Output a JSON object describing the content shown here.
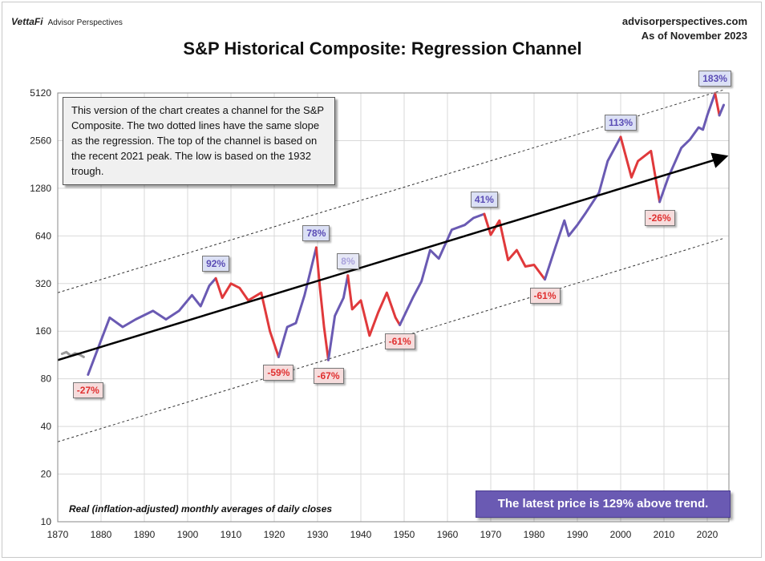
{
  "header": {
    "brand": "VettaFi",
    "brand_sub": "Advisor Perspectives",
    "site": "advisorperspectives.com",
    "as_of": "As of November 2023"
  },
  "colors": {
    "up": "#6a5ab3",
    "down": "#e0393b",
    "early": "#999999",
    "trend": "#000000"
  },
  "chart_data": {
    "type": "line",
    "title": "S&P Historical Composite: Regression Channel",
    "xlabel": "",
    "ylabel": "",
    "y_scale": "log2",
    "xlim": [
      1870,
      2025
    ],
    "ylim": [
      10,
      5120
    ],
    "x_ticks": [
      1870,
      1880,
      1890,
      1900,
      1910,
      1920,
      1930,
      1940,
      1950,
      1960,
      1970,
      1980,
      1990,
      2000,
      2010,
      2020
    ],
    "y_ticks": [
      10,
      20,
      40,
      80,
      160,
      320,
      640,
      1280,
      2560,
      5120
    ],
    "grid": true,
    "series": [
      {
        "color": "early",
        "x": [
          1871,
          1872,
          1873,
          1874,
          1875,
          1876
        ],
        "y": [
          115,
          118,
          112,
          116,
          114,
          110
        ]
      },
      {
        "color": "up",
        "x": [
          1877,
          1880,
          1882,
          1885,
          1888,
          1892,
          1895,
          1898,
          1901,
          1903,
          1905,
          1906.5
        ],
        "y": [
          85,
          140,
          195,
          170,
          190,
          215,
          190,
          215,
          270,
          230,
          310,
          345
        ]
      },
      {
        "color": "down",
        "x": [
          1906.5,
          1908,
          1910,
          1912,
          1914,
          1917,
          1919,
          1921
        ],
        "y": [
          345,
          260,
          320,
          300,
          250,
          280,
          160,
          110
        ]
      },
      {
        "color": "up",
        "x": [
          1921,
          1923,
          1925,
          1927,
          1929.7
        ],
        "y": [
          110,
          170,
          180,
          270,
          540
        ]
      },
      {
        "color": "down",
        "x": [
          1929.7,
          1930.5,
          1931.5,
          1932.5
        ],
        "y": [
          540,
          310,
          170,
          105
        ]
      },
      {
        "color": "up",
        "x": [
          1932.5,
          1934,
          1936,
          1937
        ],
        "y": [
          105,
          200,
          260,
          360
        ]
      },
      {
        "color": "down",
        "x": [
          1937,
          1938,
          1940,
          1942,
          1944,
          1946,
          1948,
          1949
        ],
        "y": [
          360,
          220,
          250,
          150,
          210,
          280,
          195,
          175
        ]
      },
      {
        "color": "up",
        "x": [
          1949,
          1952,
          1954,
          1956,
          1958,
          1961,
          1964,
          1966,
          1968.5
        ],
        "y": [
          175,
          260,
          330,
          520,
          460,
          700,
          750,
          830,
          880
        ]
      },
      {
        "color": "down",
        "x": [
          1968.5,
          1970,
          1972,
          1974,
          1976,
          1978,
          1980,
          1982.5
        ],
        "y": [
          880,
          650,
          800,
          450,
          520,
          410,
          420,
          340
        ]
      },
      {
        "color": "up",
        "x": [
          1982.5,
          1985,
          1987,
          1988,
          1990,
          1992,
          1995,
          1997,
          2000
        ],
        "y": [
          340,
          550,
          800,
          640,
          750,
          900,
          1200,
          1900,
          2700
        ]
      },
      {
        "color": "down",
        "x": [
          2000,
          2002.5,
          2004,
          2007,
          2009
        ],
        "y": [
          2700,
          1500,
          1900,
          2200,
          1050
        ]
      },
      {
        "color": "up",
        "x": [
          2009,
          2011,
          2014,
          2016,
          2018,
          2019,
          2020,
          2021.8
        ],
        "y": [
          1050,
          1500,
          2300,
          2600,
          3100,
          3000,
          3700,
          5100
        ]
      },
      {
        "color": "down",
        "x": [
          2021.8,
          2022.8
        ],
        "y": [
          5100,
          3700
        ]
      },
      {
        "color": "up",
        "x": [
          2022.8,
          2023.8
        ],
        "y": [
          3700,
          4300
        ]
      }
    ],
    "trend_line": {
      "x": [
        1870,
        2024
      ],
      "y": [
        105,
        2020
      ]
    },
    "channel_upper": {
      "x": [
        1870,
        2024
      ],
      "y": [
        280,
        5380
      ]
    },
    "channel_lower": {
      "x": [
        1870,
        2024
      ],
      "y": [
        32,
        620
      ]
    },
    "annotations": [
      {
        "text": "-27%",
        "x": 1877,
        "y": 85,
        "style": "red",
        "pos": "below"
      },
      {
        "text": "92%",
        "x": 1906.5,
        "y": 345,
        "style": "blue",
        "pos": "above"
      },
      {
        "text": "-59%",
        "x": 1921,
        "y": 110,
        "style": "red",
        "pos": "below"
      },
      {
        "text": "78%",
        "x": 1929.7,
        "y": 540,
        "style": "blue",
        "pos": "above"
      },
      {
        "text": "-67%",
        "x": 1932.5,
        "y": 105,
        "style": "red",
        "pos": "below"
      },
      {
        "text": "8%",
        "x": 1937,
        "y": 360,
        "style": "light",
        "pos": "above"
      },
      {
        "text": "-61%",
        "x": 1949,
        "y": 175,
        "style": "red",
        "pos": "below"
      },
      {
        "text": "41%",
        "x": 1968.5,
        "y": 880,
        "style": "blue",
        "pos": "above"
      },
      {
        "text": "-61%",
        "x": 1982.5,
        "y": 340,
        "style": "red",
        "pos": "below"
      },
      {
        "text": "113%",
        "x": 2000,
        "y": 2700,
        "style": "blue",
        "pos": "above"
      },
      {
        "text": "-26%",
        "x": 2009,
        "y": 1050,
        "style": "red",
        "pos": "below"
      },
      {
        "text": "183%",
        "x": 2021.8,
        "y": 5100,
        "style": "blue",
        "pos": "above"
      }
    ]
  },
  "note": "This version of the chart creates a channel for the S&P Composite. The two dotted lines have the same slope as the regression. The top of the channel is based on the recent 2021 peak. The low is based on the 1932 trough.",
  "footnote": "Real (inflation-adjusted) monthly averages of daily closes",
  "latest": "The latest price is 129% above trend."
}
